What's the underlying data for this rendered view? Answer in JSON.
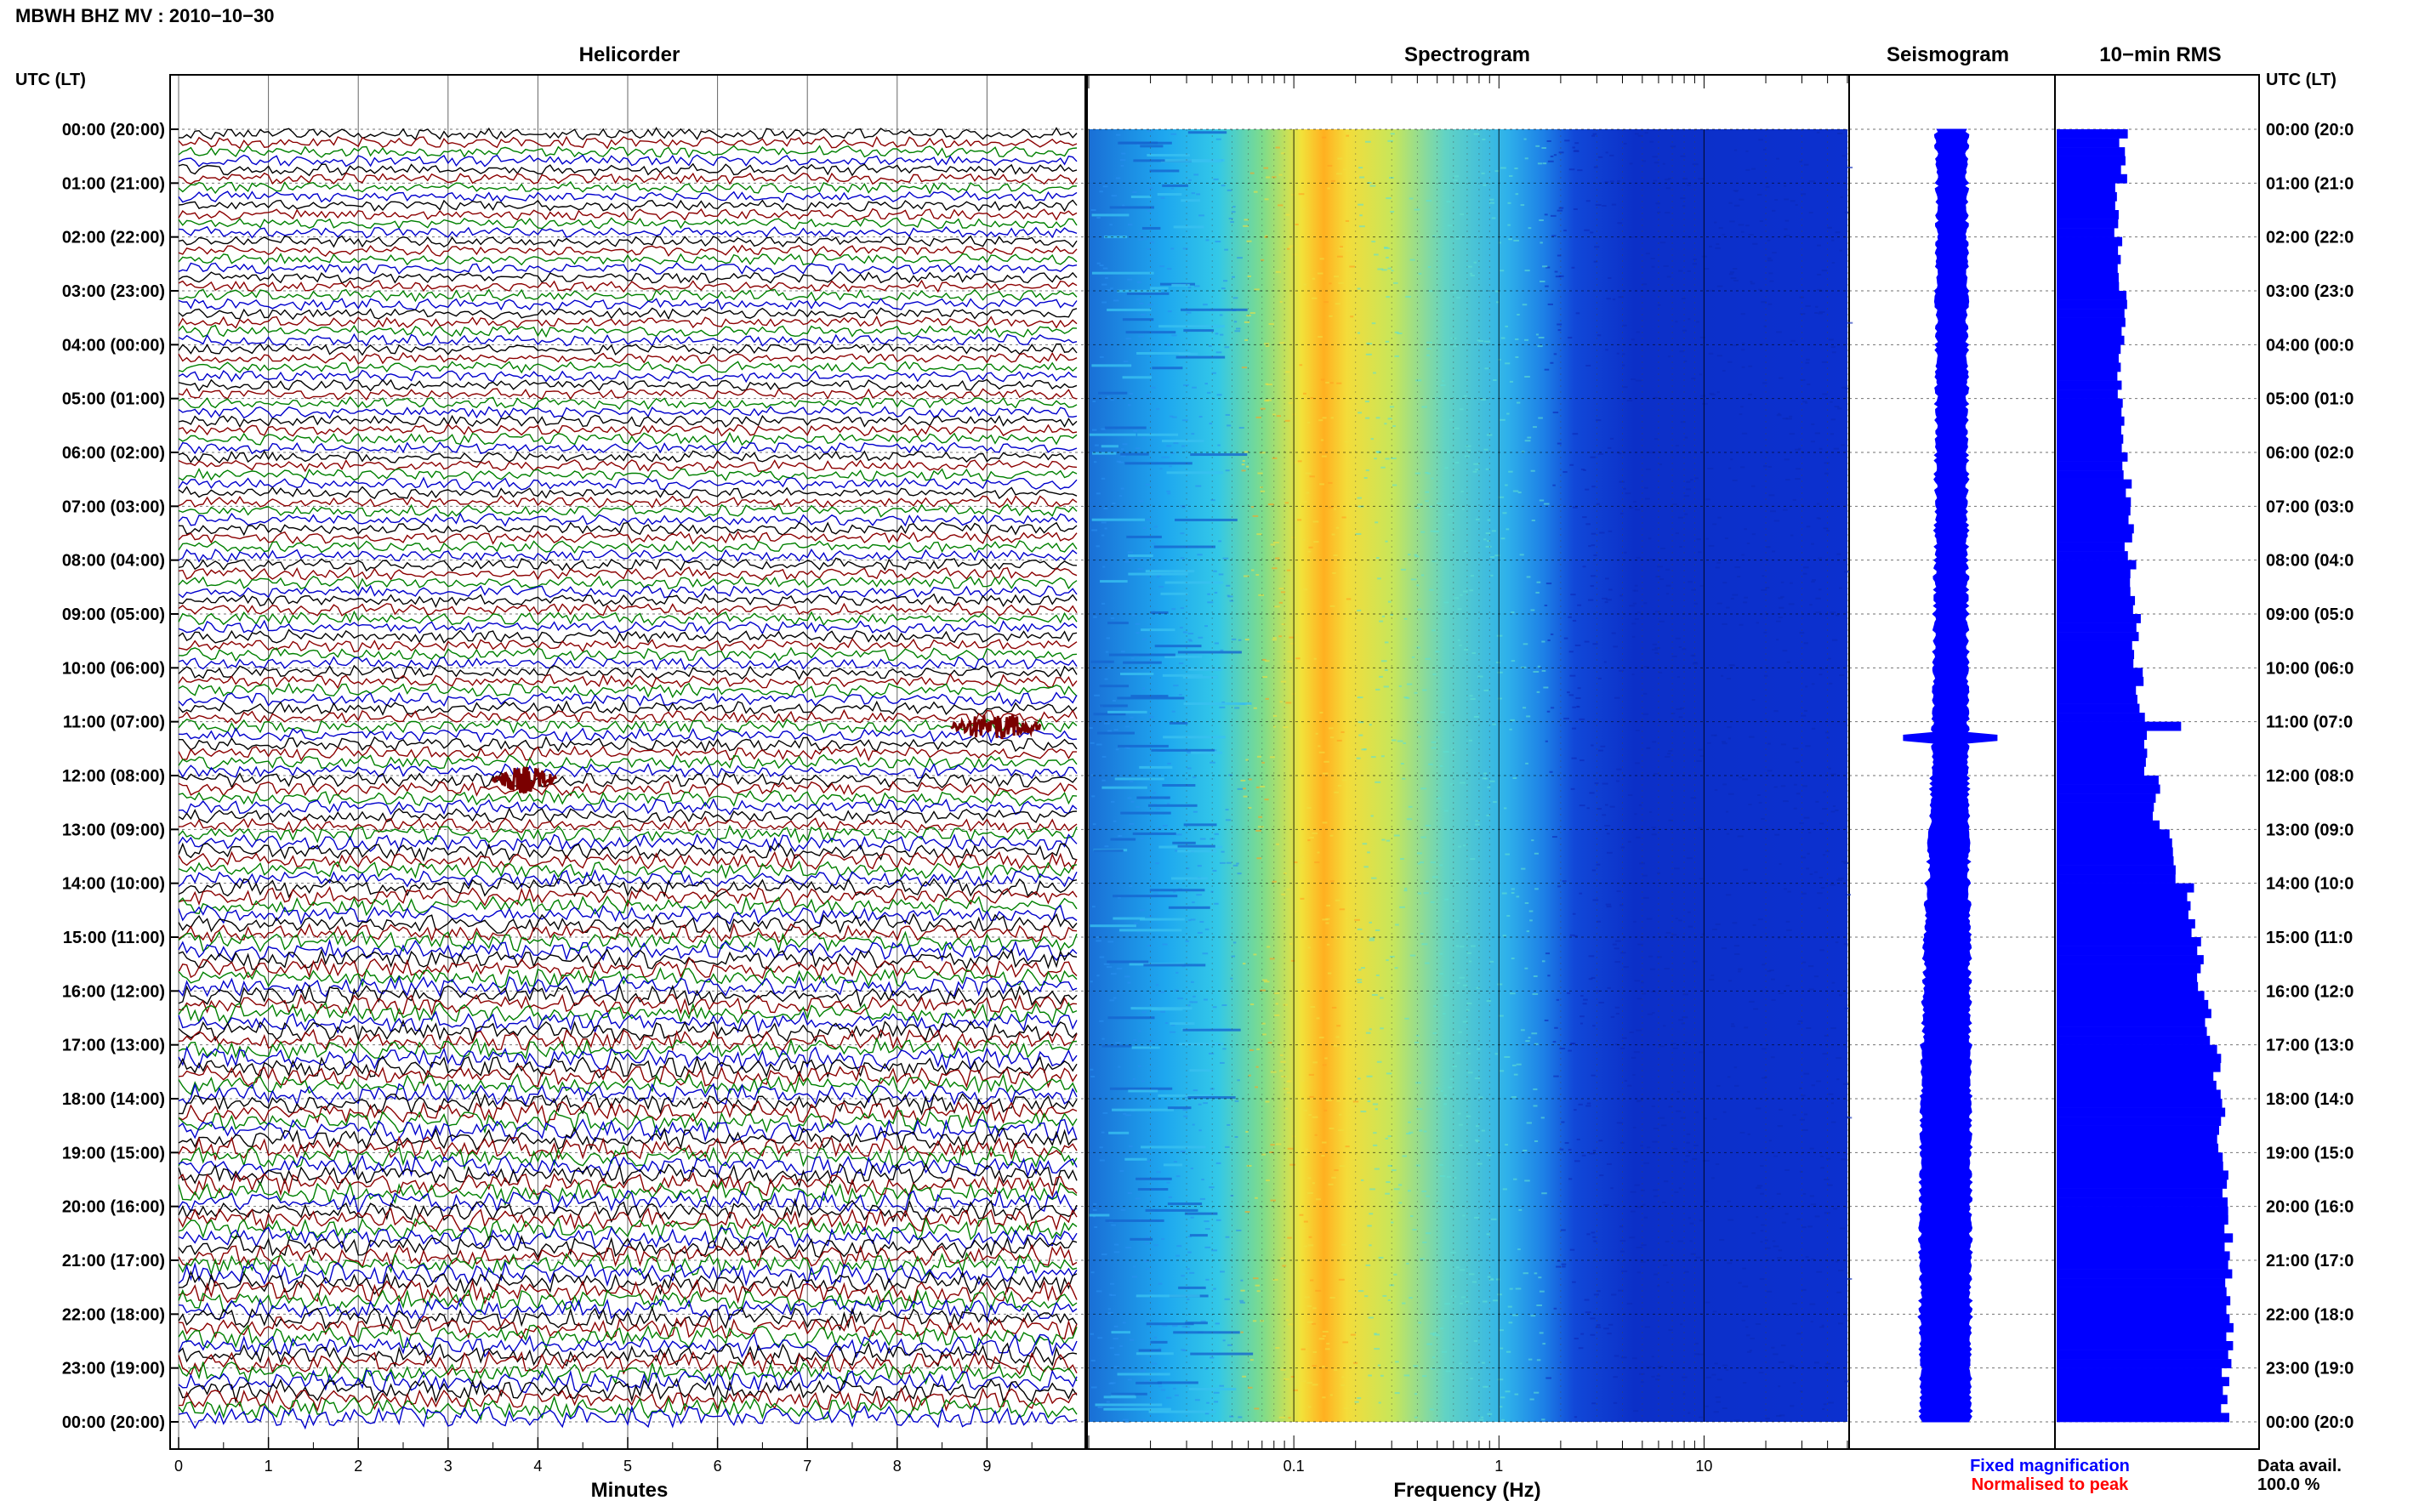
{
  "header": {
    "station_title": "MBWH BHZ MV : 2010−10−30"
  },
  "panels": {
    "helicorder": "Helicorder",
    "spectrogram": "Spectrogram",
    "seismogram": "Seismogram",
    "rms": "10−min RMS"
  },
  "axis": {
    "left_header": "UTC (LT)",
    "right_header": "UTC (LT)",
    "minutes_label": "Minutes",
    "frequency_label": "Frequency (Hz)"
  },
  "legend": {
    "fixed": "Fixed magnification",
    "normalised": "Normalised to peak",
    "fixed_color": "#0000ff",
    "normalised_color": "#ff0000"
  },
  "availability": {
    "label": "Data avail.",
    "value": "100.0 %"
  },
  "colors": {
    "trace_cycle": [
      "#000000",
      "#8b0000",
      "#008000",
      "#0000cc"
    ],
    "rms_fill": "#0000ff"
  },
  "chart_data": [
    {
      "type": "line",
      "name": "helicorder",
      "title": "Helicorder",
      "xlabel": "Minutes",
      "xticks": [
        "0",
        "1",
        "2",
        "3",
        "4",
        "5",
        "6",
        "7",
        "8",
        "9"
      ],
      "xlim": [
        0,
        10
      ],
      "row_labels_left": [
        "00:00 (20:00)",
        "01:00 (21:00)",
        "02:00 (22:00)",
        "03:00 (23:00)",
        "04:00 (00:00)",
        "05:00 (01:00)",
        "06:00 (02:00)",
        "07:00 (03:00)",
        "08:00 (04:00)",
        "09:00 (05:00)",
        "10:00 (06:00)",
        "11:00 (07:00)",
        "12:00 (08:00)",
        "13:00 (09:00)",
        "14:00 (10:00)",
        "15:00 (11:00)",
        "16:00 (12:00)",
        "17:00 (13:00)",
        "18:00 (14:00)",
        "19:00 (15:00)",
        "20:00 (16:00)",
        "21:00 (17:00)",
        "22:00 (18:00)",
        "23:00 (19:00)",
        "00:00 (20:00)"
      ],
      "row_labels_right": [
        "00:00 (20:0",
        "01:00 (21:0",
        "02:00 (22:0",
        "03:00 (23:0",
        "04:00 (00:0",
        "05:00 (01:0",
        "06:00 (02:0",
        "07:00 (03:0",
        "08:00 (04:0",
        "09:00 (05:0",
        "10:00 (06:0",
        "11:00 (07:0",
        "12:00 (08:0",
        "13:00 (09:0",
        "14:00 (10:0",
        "15:00 (11:0",
        "16:00 (12:0",
        "17:00 (13:0",
        "18:00 (14:0",
        "19:00 (15:0",
        "20:00 (16:0",
        "21:00 (17:0",
        "22:00 (18:0",
        "23:00 (19:0",
        "00:00 (20:0"
      ],
      "traces_per_hour": 6,
      "events": [
        {
          "hour": 11,
          "minute_start": 8.6,
          "minute_end": 9.6
        },
        {
          "hour": 12,
          "minute_start": 3.5,
          "minute_end": 4.2
        }
      ]
    },
    {
      "type": "heatmap",
      "name": "spectrogram",
      "title": "Spectrogram",
      "xlabel": "Frequency (Hz)",
      "xscale": "log",
      "xticks": [
        "0.1",
        "1",
        "10"
      ],
      "xlim": [
        0.01,
        50
      ],
      "rows_hours": 24,
      "peak_band_hz": [
        0.15,
        0.3
      ]
    },
    {
      "type": "area",
      "name": "seismogram",
      "title": "Seismogram",
      "hours": 24
    },
    {
      "type": "bar",
      "name": "rms",
      "title": "10−min RMS",
      "orientation": "horizontal",
      "bins_per_hour": 6,
      "hourly_relative_rms": [
        0.33,
        0.31,
        0.31,
        0.33,
        0.32,
        0.34,
        0.35,
        0.36,
        0.38,
        0.4,
        0.42,
        0.45,
        0.5,
        0.58,
        0.67,
        0.72,
        0.76,
        0.8,
        0.82,
        0.84,
        0.86,
        0.85,
        0.87,
        0.84
      ],
      "spike": {
        "hour": 11,
        "relative_rms": 0.62
      }
    }
  ]
}
